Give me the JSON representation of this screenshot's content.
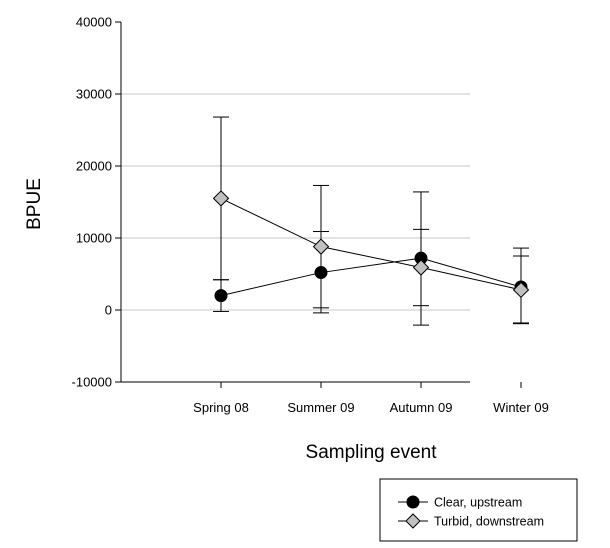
{
  "chart_data": {
    "type": "line",
    "title": "",
    "xlabel": "Sampling event",
    "ylabel": "BPUE",
    "categories": [
      "Spring 08",
      "Summer 09",
      "Autumn 09",
      "Winter 09"
    ],
    "ylim": [
      -10000,
      40000
    ],
    "yticks": [
      "-10000",
      "0",
      "10000",
      "20000",
      "30000",
      "40000"
    ],
    "grid": "horizontal",
    "legend_position": "bottom-right, below plot",
    "series": [
      {
        "name": "Clear, upstream",
        "marker": "circle",
        "marker_color": "#000000",
        "values": [
          2000,
          5200,
          7200,
          3200
        ],
        "err_upper": [
          4200,
          10900,
          11200,
          7500
        ],
        "err_lower": [
          -200,
          -400,
          600,
          -1800
        ]
      },
      {
        "name": "Turbid, downstream",
        "marker": "diamond",
        "marker_color": "#c0c0c0",
        "values": [
          15500,
          8800,
          5900,
          2800
        ],
        "err_upper": [
          26800,
          17300,
          16400,
          8600
        ],
        "err_lower": [
          4200,
          300,
          -2100,
          -1900
        ]
      }
    ]
  }
}
